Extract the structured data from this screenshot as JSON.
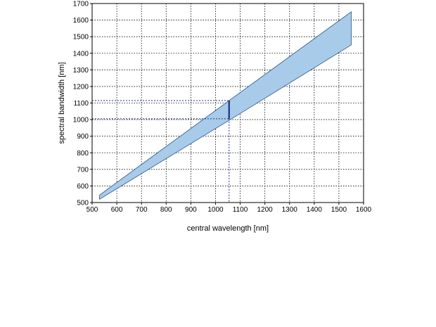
{
  "chart_data": {
    "type": "area",
    "title": "",
    "xlabel": "central wavelength [nm]",
    "ylabel": "spectral bandwidth [nm]",
    "xlim": [
      500,
      1600
    ],
    "ylim": [
      500,
      1700
    ],
    "xticks": [
      500,
      600,
      700,
      800,
      900,
      1000,
      1100,
      1200,
      1300,
      1400,
      1500,
      1600
    ],
    "yticks": [
      500,
      600,
      700,
      800,
      900,
      1000,
      1100,
      1200,
      1300,
      1400,
      1500,
      1600,
      1700
    ],
    "grid": true,
    "band": {
      "x": [
        530,
        1060,
        1550
      ],
      "upper": [
        545,
        1120,
        1650
      ],
      "lower": [
        520,
        1000,
        1450
      ]
    },
    "marker": {
      "x": 1055,
      "y_low": 1005,
      "y_high": 1115
    },
    "colors": {
      "band_fill": "#a9cbea",
      "band_stroke": "#2a4f86",
      "marker": "#1a2f8a",
      "grid": "#000000"
    }
  }
}
